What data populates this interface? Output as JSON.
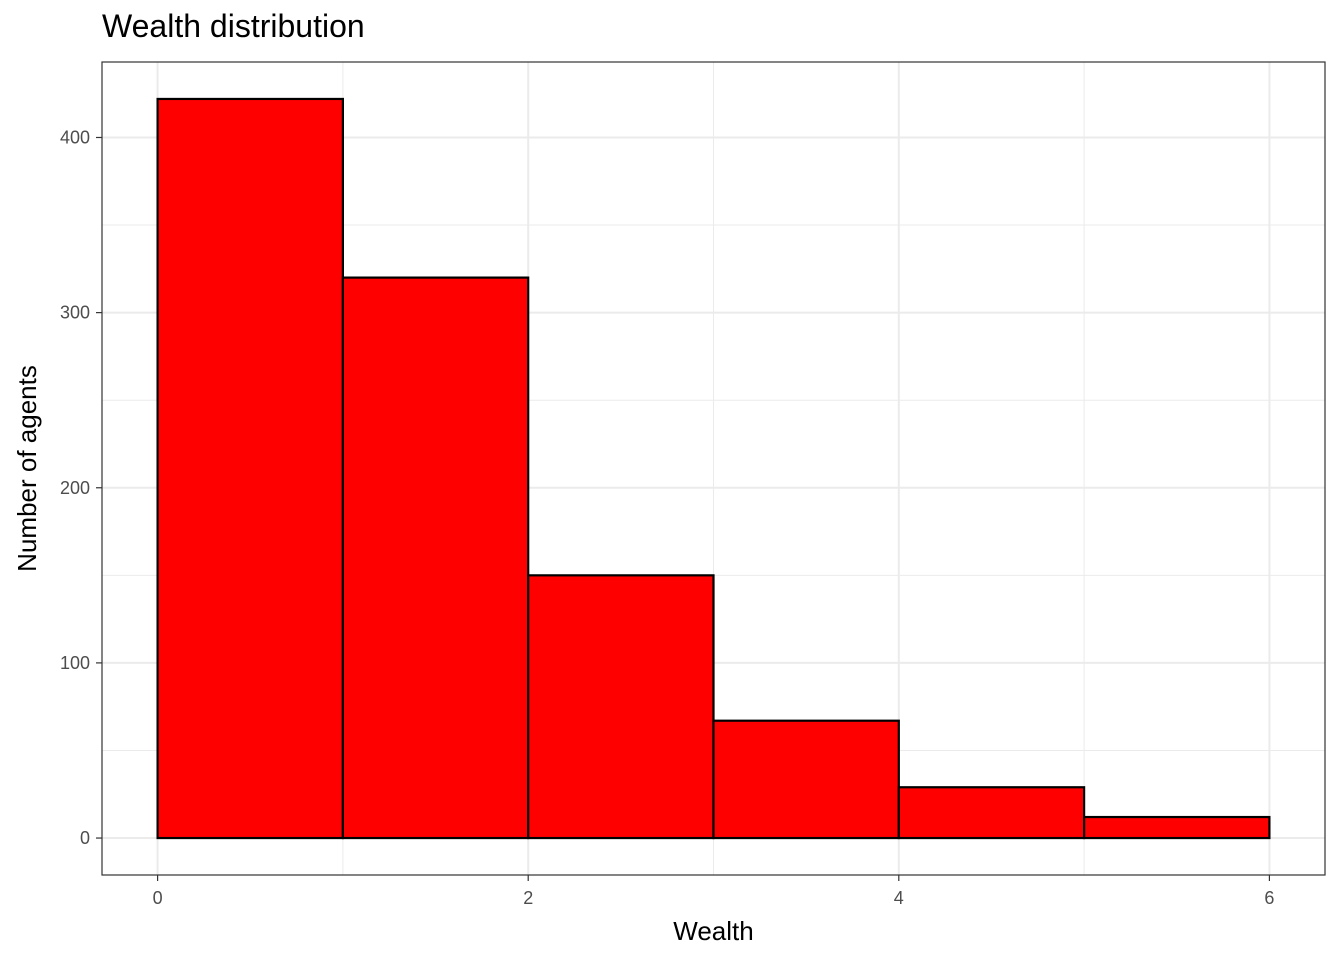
{
  "chart_data": {
    "type": "bar",
    "title": "Wealth distribution",
    "xlabel": "Wealth",
    "ylabel": "Number of agents",
    "bins": [
      {
        "x0": 0,
        "x1": 1,
        "count": 422
      },
      {
        "x0": 1,
        "x1": 2,
        "count": 320
      },
      {
        "x0": 2,
        "x1": 3,
        "count": 150
      },
      {
        "x0": 3,
        "x1": 4,
        "count": 67
      },
      {
        "x0": 4,
        "x1": 5,
        "count": 29
      },
      {
        "x0": 5,
        "x1": 6,
        "count": 12
      }
    ],
    "xlim": [
      -0.3,
      6.3
    ],
    "ylim": [
      -21.1,
      443.1
    ],
    "xticks": [
      0,
      2,
      4,
      6
    ],
    "xtick_labels": [
      "0",
      "2",
      "4",
      "6"
    ],
    "yticks": [
      0,
      100,
      200,
      300,
      400
    ],
    "ytick_labels": [
      "0",
      "100",
      "200",
      "300",
      "400"
    ],
    "grid": true,
    "bar_fill": "#ff0000",
    "bar_stroke": "#000000",
    "grid_color": "#ebebeb",
    "panel_border": "#333333"
  }
}
